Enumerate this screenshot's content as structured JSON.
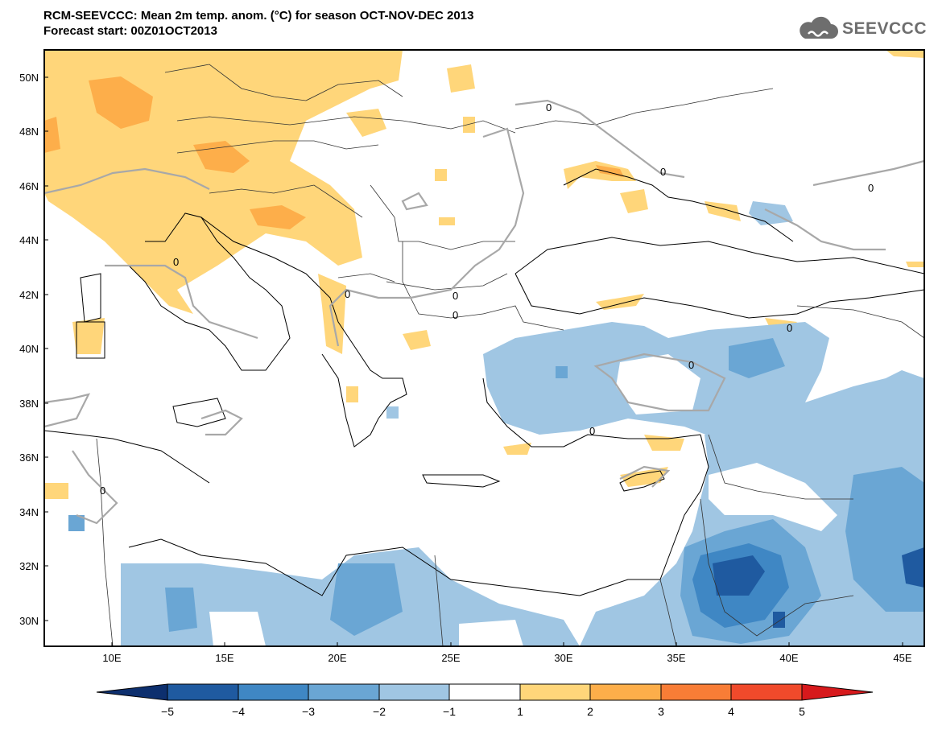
{
  "header": {
    "title": "RCM-SEEVCCC: Mean 2m temp. anom. (°C) for season OCT-NOV-DEC 2013",
    "subtitle": "Forecast start: 00Z01OCT2013"
  },
  "logo": {
    "text": "SEEVCCC",
    "icon": "cloud-icon"
  },
  "map": {
    "lat_labels": [
      "50N",
      "48N",
      "46N",
      "44N",
      "42N",
      "40N",
      "38N",
      "36N",
      "34N",
      "32N",
      "30N"
    ],
    "lon_labels": [
      "10E",
      "15E",
      "20E",
      "25E",
      "30E",
      "35E",
      "40E",
      "45E"
    ],
    "contour_label": "0"
  },
  "colorbar": {
    "labels": [
      "−5",
      "−4",
      "−3",
      "−2",
      "−1",
      "1",
      "2",
      "3",
      "4",
      "5"
    ],
    "colors": [
      "#0d2f6e",
      "#1f5aa0",
      "#3f87c4",
      "#6aa6d4",
      "#a0c6e3",
      "#ffffff",
      "#ffd67a",
      "#fdae4a",
      "#f87d36",
      "#f04a2b",
      "#d7191c"
    ]
  }
}
